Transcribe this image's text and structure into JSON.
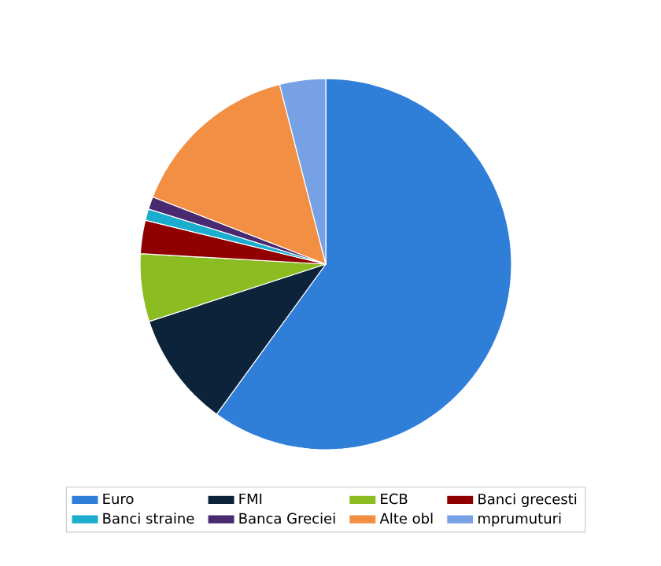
{
  "chart_data": {
    "type": "pie",
    "categories": [
      "Euro",
      "FMI",
      "ECB",
      "Banci grecesti",
      "Banci straine",
      "Banca Greciei",
      "Alte obl",
      "mprumuturi"
    ],
    "values": [
      60,
      10,
      5.9,
      2.9,
      1,
      1.1,
      15.1,
      4
    ],
    "colors": [
      "#2f7ed8",
      "#0d233a",
      "#8bbc21",
      "#910000",
      "#1aadce",
      "#492970",
      "#f28f43",
      "#77a1e5"
    ],
    "legend": "bottom"
  }
}
